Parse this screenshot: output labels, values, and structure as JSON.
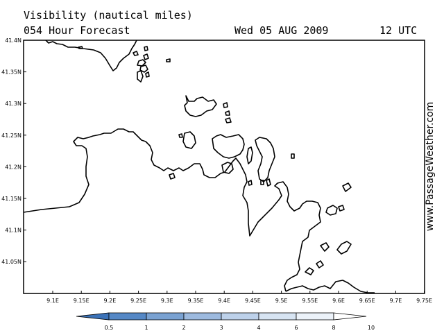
{
  "header": {
    "title_line1": "Visibility (nautical miles)",
    "title_line2": "054 Hour Forecast",
    "date": "Wed 05 AUG 2009",
    "time": "12 UTC"
  },
  "watermark": "www.PassageWeather.com",
  "map": {
    "lat_labels": [
      "41.4N",
      "41.35N",
      "41.3N",
      "41.25N",
      "41.2N",
      "41.15N",
      "41.1N",
      "41.05N"
    ],
    "lon_labels": [
      "9.1E",
      "9.15E",
      "9.2E",
      "9.25E",
      "9.3E",
      "9.35E",
      "9.4E",
      "9.45E",
      "9.5E",
      "9.55E",
      "9.6E",
      "9.65E",
      "9.7E",
      "9.75E"
    ]
  },
  "colorbar": {
    "labels": [
      "0.5",
      "1",
      "2",
      "3",
      "4",
      "6",
      "8",
      "10"
    ],
    "colors": [
      "#3b72b8",
      "#5588c6",
      "#7aa2d2",
      "#9dbadf",
      "#bdd1ea",
      "#d7e4f2",
      "#ecf2f9",
      "#ffffff"
    ]
  }
}
